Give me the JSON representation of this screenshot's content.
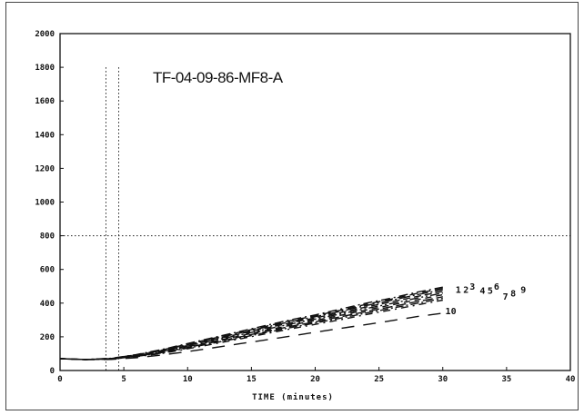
{
  "chart_data": {
    "type": "line",
    "title": "TF-04-09-86-MF8-A",
    "xlabel": "TIME (minutes)",
    "ylabel": "",
    "xlim": [
      0,
      40
    ],
    "ylim": [
      0,
      2000
    ],
    "xticks": [
      0,
      5,
      10,
      15,
      20,
      25,
      30,
      35,
      40
    ],
    "yticks": [
      0,
      200,
      400,
      600,
      800,
      1000,
      1200,
      1400,
      1600,
      1800,
      2000
    ],
    "reference_lines": {
      "horizontal_y": 800,
      "vertical_x": [
        3.6,
        4.6
      ]
    },
    "series": [
      {
        "name": "1",
        "x": [
          0,
          2,
          4,
          6,
          8,
          10,
          12,
          14,
          16,
          18,
          20,
          22,
          24,
          26,
          28,
          30
        ],
        "y": [
          70,
          65,
          72,
          95,
          125,
          160,
          195,
          230,
          265,
          300,
          330,
          365,
          400,
          430,
          465,
          495
        ]
      },
      {
        "name": "2",
        "x": [
          0,
          2,
          4,
          6,
          8,
          10,
          12,
          14,
          16,
          18,
          20,
          22,
          24,
          26,
          28,
          30
        ],
        "y": [
          70,
          65,
          71,
          94,
          122,
          157,
          191,
          226,
          260,
          295,
          325,
          358,
          393,
          424,
          458,
          488
        ]
      },
      {
        "name": "3",
        "x": [
          0,
          2,
          4,
          6,
          8,
          10,
          12,
          14,
          16,
          18,
          20,
          22,
          24,
          26,
          28,
          30
        ],
        "y": [
          70,
          65,
          71,
          92,
          119,
          153,
          187,
          221,
          255,
          289,
          319,
          352,
          386,
          417,
          450,
          480
        ]
      },
      {
        "name": "4",
        "x": [
          0,
          2,
          4,
          6,
          8,
          10,
          12,
          14,
          16,
          18,
          20,
          22,
          24,
          26,
          28,
          30
        ],
        "y": [
          70,
          65,
          70,
          90,
          116,
          149,
          182,
          216,
          249,
          282,
          312,
          344,
          377,
          408,
          440,
          470
        ]
      },
      {
        "name": "5",
        "x": [
          0,
          2,
          4,
          6,
          8,
          10,
          12,
          14,
          16,
          18,
          20,
          22,
          24,
          26,
          28,
          30
        ],
        "y": [
          70,
          65,
          70,
          89,
          113,
          145,
          177,
          210,
          242,
          275,
          305,
          336,
          368,
          398,
          430,
          460
        ]
      },
      {
        "name": "6",
        "x": [
          0,
          2,
          4,
          6,
          8,
          10,
          12,
          14,
          16,
          18,
          20,
          22,
          24,
          26,
          28,
          30
        ],
        "y": [
          70,
          65,
          69,
          87,
          110,
          141,
          172,
          204,
          236,
          268,
          297,
          328,
          359,
          389,
          420,
          450
        ]
      },
      {
        "name": "7",
        "x": [
          0,
          2,
          4,
          6,
          8,
          10,
          12,
          14,
          16,
          18,
          20,
          22,
          24,
          26,
          28,
          30
        ],
        "y": [
          70,
          65,
          69,
          85,
          107,
          137,
          167,
          198,
          229,
          261,
          289,
          319,
          350,
          379,
          409,
          438
        ]
      },
      {
        "name": "8",
        "x": [
          0,
          2,
          4,
          6,
          8,
          10,
          12,
          14,
          16,
          18,
          20,
          22,
          24,
          26,
          28,
          30
        ],
        "y": [
          70,
          65,
          68,
          84,
          104,
          133,
          162,
          192,
          223,
          254,
          282,
          311,
          341,
          370,
          399,
          428
        ]
      },
      {
        "name": "9",
        "x": [
          0,
          2,
          4,
          6,
          8,
          10,
          12,
          14,
          16,
          18,
          20,
          22,
          24,
          26,
          28,
          30
        ],
        "y": [
          70,
          65,
          68,
          82,
          101,
          129,
          157,
          186,
          216,
          246,
          274,
          302,
          332,
          360,
          389,
          418
        ]
      },
      {
        "name": "10",
        "x": [
          0,
          2,
          4,
          6,
          8,
          10,
          12,
          14,
          16,
          18,
          20,
          22,
          24,
          26,
          28,
          30
        ],
        "y": [
          70,
          64,
          66,
          76,
          92,
          112,
          135,
          158,
          180,
          203,
          227,
          250,
          273,
          296,
          320,
          340
        ]
      }
    ],
    "curve_labels": [
      {
        "text": "1",
        "x": 31.0,
        "y": 460
      },
      {
        "text": "2",
        "x": 31.6,
        "y": 460
      },
      {
        "text": "3",
        "x": 32.1,
        "y": 480
      },
      {
        "text": "4",
        "x": 32.9,
        "y": 455
      },
      {
        "text": "5",
        "x": 33.5,
        "y": 455
      },
      {
        "text": "6",
        "x": 34.0,
        "y": 480
      },
      {
        "text": "7",
        "x": 34.7,
        "y": 420
      },
      {
        "text": "8",
        "x": 35.3,
        "y": 440
      },
      {
        "text": "9",
        "x": 36.1,
        "y": 460
      },
      {
        "text": "10",
        "x": 30.2,
        "y": 335
      }
    ],
    "grid": false,
    "legend": "none"
  }
}
